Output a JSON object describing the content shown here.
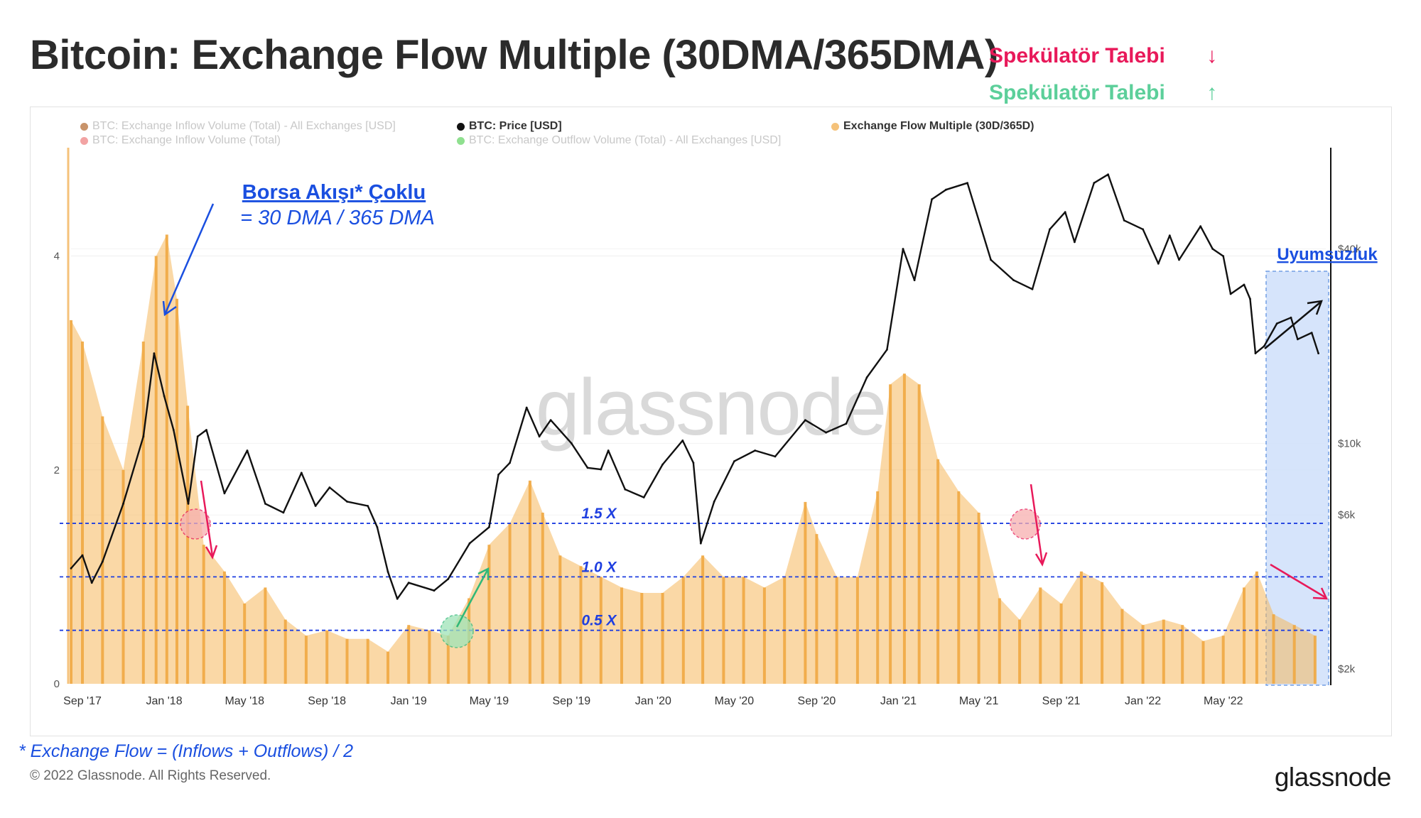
{
  "title": "Bitcoin: Exchange Flow Multiple (30DMA/365DMA)",
  "speculator": {
    "down_label": "Spekülatör Talebi",
    "down_arrow": "↓",
    "up_label": "Spekülatör Talebi",
    "up_arrow": "↑"
  },
  "legend": [
    {
      "label": "BTC: Exchange Inflow Volume (Total) - All Exchanges [USD]",
      "color": "#c8936a",
      "faded": true
    },
    {
      "label": "BTC: Exchange Inflow Volume (Total)",
      "color": "#f2a3a3",
      "faded": true
    },
    {
      "label": "BTC: Price [USD]",
      "color": "#111111",
      "faded": false
    },
    {
      "label": "BTC: Exchange Outflow Volume (Total) - All Exchanges [USD]",
      "color": "#8fe08f",
      "faded": true
    },
    {
      "label": "Exchange Flow Multiple (30D/365D)",
      "color": "#f5c27a",
      "faded": false
    }
  ],
  "annotations": {
    "efm_title": "Borsa Akışı* Çoklu",
    "efm_formula": "= 30 DMA / 365 DMA",
    "divergence": "Uyumsuzluk",
    "watermark": "glassnode"
  },
  "footnote": "* Exchange Flow = (Inflows + Outflows) / 2",
  "copyright": "© 2022 Glassnode. All Rights Reserved.",
  "brand": "glassnode",
  "colors": {
    "bars": "#f5b85c",
    "price": "#111111",
    "threshold": "#1f3fe0",
    "divergence_box": "#cfe0fb",
    "bearish": "#e8195a",
    "bullish": "#2fb879"
  },
  "chart_data": [
    {
      "type": "area",
      "x": [
        "2017-08-15",
        "2017-09-01",
        "2017-10-01",
        "2017-11-01",
        "2017-12-01",
        "2017-12-20",
        "2018-01-05",
        "2018-01-20",
        "2018-02-05",
        "2018-03-01",
        "2018-04-01",
        "2018-05-01",
        "2018-06-01",
        "2018-07-01",
        "2018-08-01",
        "2018-09-01",
        "2018-10-01",
        "2018-11-01",
        "2018-12-01",
        "2019-01-01",
        "2019-02-01",
        "2019-03-01",
        "2019-04-01",
        "2019-05-01",
        "2019-06-01",
        "2019-07-01",
        "2019-07-20",
        "2019-08-15",
        "2019-09-15",
        "2019-10-15",
        "2019-11-15",
        "2019-12-15",
        "2020-01-15",
        "2020-02-15",
        "2020-03-15",
        "2020-04-15",
        "2020-05-15",
        "2020-06-15",
        "2020-07-15",
        "2020-08-15",
        "2020-09-01",
        "2020-10-01",
        "2020-11-01",
        "2020-12-01",
        "2020-12-20",
        "2021-01-10",
        "2021-02-01",
        "2021-03-01",
        "2021-04-01",
        "2021-05-01",
        "2021-06-01",
        "2021-07-01",
        "2021-08-01",
        "2021-09-01",
        "2021-10-01",
        "2021-11-01",
        "2021-12-01",
        "2022-01-01",
        "2022-02-01",
        "2022-03-01",
        "2022-04-01",
        "2022-05-01",
        "2022-06-01",
        "2022-06-20",
        "2022-07-15",
        "2022-08-15",
        "2022-09-15"
      ],
      "values": [
        3.4,
        3.2,
        2.5,
        2.0,
        3.2,
        4.0,
        4.2,
        3.6,
        2.6,
        1.3,
        1.05,
        0.75,
        0.9,
        0.6,
        0.45,
        0.5,
        0.42,
        0.42,
        0.3,
        0.55,
        0.5,
        0.45,
        0.8,
        1.3,
        1.5,
        1.9,
        1.6,
        1.2,
        1.1,
        1.0,
        0.9,
        0.85,
        0.85,
        1.0,
        1.2,
        1.0,
        1.0,
        0.9,
        1.0,
        1.7,
        1.4,
        1.0,
        1.0,
        1.8,
        2.8,
        2.9,
        2.8,
        2.1,
        1.8,
        1.6,
        0.8,
        0.6,
        0.9,
        0.75,
        1.05,
        0.95,
        0.7,
        0.55,
        0.6,
        0.55,
        0.4,
        0.45,
        0.9,
        1.05,
        0.65,
        0.55,
        0.45
      ],
      "series_name": "Exchange Flow Multiple (30D/365D)",
      "ylim": [
        0,
        4.8
      ],
      "yticks": [
        0,
        2,
        4
      ],
      "xticks": [
        {
          "x": "2017-09-01",
          "label": "Sep '17"
        },
        {
          "x": "2018-01-01",
          "label": "Jan '18"
        },
        {
          "x": "2018-05-01",
          "label": "May '18"
        },
        {
          "x": "2018-09-01",
          "label": "Sep '18"
        },
        {
          "x": "2019-01-01",
          "label": "Jan '19"
        },
        {
          "x": "2019-05-01",
          "label": "May '19"
        },
        {
          "x": "2019-09-01",
          "label": "Sep '19"
        },
        {
          "x": "2020-01-01",
          "label": "Jan '20"
        },
        {
          "x": "2020-05-01",
          "label": "May '20"
        },
        {
          "x": "2020-09-01",
          "label": "Sep '20"
        },
        {
          "x": "2021-01-01",
          "label": "Jan '21"
        },
        {
          "x": "2021-05-01",
          "label": "May '21"
        },
        {
          "x": "2021-09-01",
          "label": "Sep '21"
        },
        {
          "x": "2022-01-01",
          "label": "Jan '22"
        },
        {
          "x": "2022-05-01",
          "label": "May '22"
        }
      ],
      "xlim": [
        "2017-08-15",
        "2022-10-01"
      ],
      "thresholds": [
        {
          "value": 1.5,
          "label": "1.5 X"
        },
        {
          "value": 1.0,
          "label": "1.0 X"
        },
        {
          "value": 0.5,
          "label": "0.5 X"
        }
      ]
    },
    {
      "type": "line",
      "series_name": "BTC: Price [USD]",
      "scale": "log",
      "x": [
        "2017-08-15",
        "2017-09-01",
        "2017-09-15",
        "2017-10-01",
        "2017-11-01",
        "2017-12-01",
        "2017-12-17",
        "2018-01-01",
        "2018-01-15",
        "2018-02-06",
        "2018-02-20",
        "2018-03-05",
        "2018-04-01",
        "2018-05-05",
        "2018-06-01",
        "2018-06-28",
        "2018-07-25",
        "2018-08-15",
        "2018-09-05",
        "2018-10-01",
        "2018-11-01",
        "2018-11-15",
        "2018-12-01",
        "2018-12-15",
        "2019-01-01",
        "2019-02-08",
        "2019-03-01",
        "2019-04-02",
        "2019-05-01",
        "2019-05-15",
        "2019-06-01",
        "2019-06-26",
        "2019-07-15",
        "2019-08-01",
        "2019-09-01",
        "2019-09-25",
        "2019-10-15",
        "2019-10-26",
        "2019-11-20",
        "2019-12-18",
        "2020-01-15",
        "2020-02-14",
        "2020-03-01",
        "2020-03-12",
        "2020-04-01",
        "2020-05-01",
        "2020-06-01",
        "2020-07-01",
        "2020-08-15",
        "2020-09-15",
        "2020-10-15",
        "2020-11-15",
        "2020-12-15",
        "2021-01-08",
        "2021-01-25",
        "2021-02-20",
        "2021-03-13",
        "2021-04-14",
        "2021-05-19",
        "2021-06-22",
        "2021-07-20",
        "2021-08-15",
        "2021-09-07",
        "2021-09-21",
        "2021-10-20",
        "2021-11-10",
        "2021-12-04",
        "2022-01-01",
        "2022-01-24",
        "2022-02-10",
        "2022-02-24",
        "2022-03-28",
        "2022-04-15",
        "2022-05-01",
        "2022-05-12",
        "2022-06-01",
        "2022-06-10",
        "2022-06-18",
        "2022-07-01",
        "2022-07-20",
        "2022-08-10",
        "2022-08-20",
        "2022-09-10",
        "2022-09-20"
      ],
      "values": [
        4100,
        4500,
        3700,
        4300,
        6500,
        10500,
        19000,
        14000,
        11000,
        6500,
        10500,
        11000,
        7000,
        9500,
        6500,
        6100,
        8100,
        6400,
        7300,
        6600,
        6400,
        5500,
        4000,
        3300,
        3700,
        3500,
        3800,
        4900,
        5500,
        8000,
        8700,
        12900,
        10500,
        11800,
        10000,
        8400,
        8300,
        9500,
        7200,
        6800,
        8600,
        10200,
        8700,
        4900,
        6600,
        8800,
        9500,
        9100,
        11800,
        10800,
        11500,
        16000,
        19500,
        40000,
        32000,
        57000,
        61000,
        64000,
        37000,
        32000,
        30000,
        46000,
        52000,
        42000,
        64000,
        68000,
        49000,
        46000,
        36000,
        44000,
        37000,
        47000,
        40000,
        38000,
        29000,
        31000,
        28000,
        19000,
        20000,
        23500,
        24500,
        21000,
        22000,
        19000
      ],
      "ylim": [
        1800,
        70000
      ],
      "ytick_labels": [
        {
          "value": 2000,
          "label": "$2k"
        },
        {
          "value": 6000,
          "label": "$6k"
        },
        {
          "value": 10000,
          "label": "$10k"
        },
        {
          "value": 40000,
          "label": "$40k"
        }
      ]
    }
  ]
}
